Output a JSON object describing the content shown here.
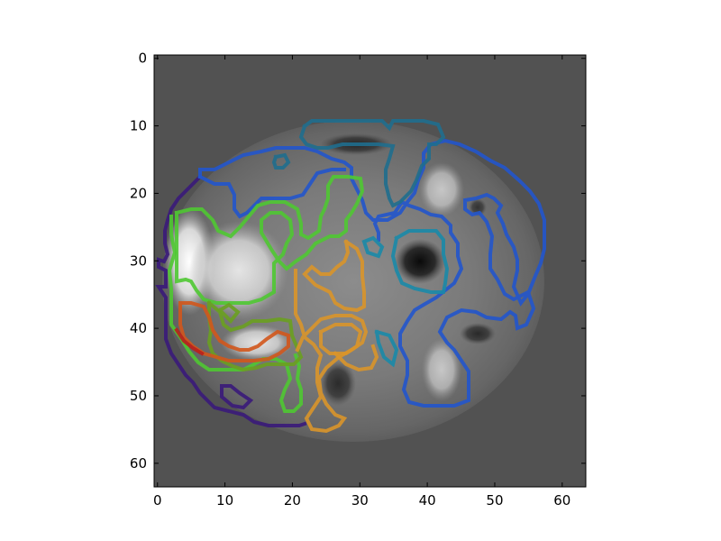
{
  "image": {
    "description_free": true,
    "grid_size": 64,
    "background_value": "#525252",
    "frame_color": "#000000"
  },
  "axes": {
    "x_ticks": [
      "0",
      "10",
      "20",
      "30",
      "40",
      "50",
      "60"
    ],
    "y_ticks": [
      "0",
      "10",
      "20",
      "30",
      "40",
      "50",
      "60"
    ],
    "x_tick_values": [
      0,
      10,
      20,
      30,
      40,
      50,
      60
    ],
    "y_tick_values": [
      0,
      10,
      20,
      30,
      40,
      50,
      60
    ],
    "xlim": [
      -0.5,
      63.5
    ],
    "ylim": [
      63.5,
      -0.5
    ]
  },
  "regions": [
    {
      "name": "indigo-region",
      "color": "#3a1a7a"
    },
    {
      "name": "blue-region",
      "color": "#2255cc"
    },
    {
      "name": "teal-region",
      "color": "#1f6e8e"
    },
    {
      "name": "cyan-region",
      "color": "#1a8aa8"
    },
    {
      "name": "green-region",
      "color": "#4fc832"
    },
    {
      "name": "olive-region",
      "color": "#6aa020"
    },
    {
      "name": "orange-region",
      "color": "#d9952a"
    },
    {
      "name": "red-orange-region",
      "color": "#d2571c"
    },
    {
      "name": "red-region",
      "color": "#b8201c"
    }
  ]
}
